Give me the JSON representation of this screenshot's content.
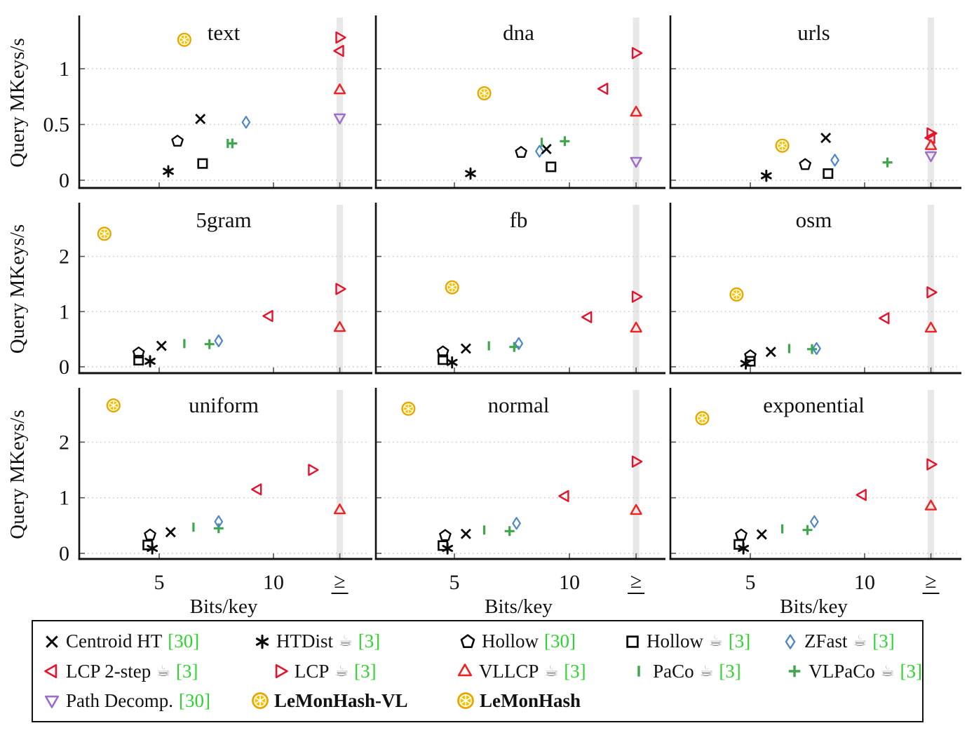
{
  "figure": {
    "ylabel": "Query MKeys/s",
    "xlabel": "Bits/key",
    "xtick_labels": [
      "5",
      "10",
      "≥"
    ],
    "gte_band_x": 12.9,
    "grid": "dotted horizontal at y ticks",
    "band_color": "#e2e2e2",
    "axis_color": "#111111",
    "cite_color": "#2fd32f"
  },
  "series": [
    {
      "id": "centroid_ht",
      "label": "Centroid HT",
      "cite": "[30]",
      "coffee": false,
      "marker": "x-marker",
      "color": "#0a0a0a"
    },
    {
      "id": "htdist",
      "label": "HTDist",
      "cite": "[3]",
      "coffee": true,
      "marker": "asterisk-marker",
      "color": "#0a0a0a"
    },
    {
      "id": "hollow30",
      "label": "Hollow",
      "cite": "[30]",
      "coffee": false,
      "marker": "pentagon-marker",
      "color": "#0a0a0a"
    },
    {
      "id": "hollow3",
      "label": "Hollow",
      "cite": "[3]",
      "coffee": true,
      "marker": "square-marker",
      "color": "#0a0a0a"
    },
    {
      "id": "zfast",
      "label": "ZFast",
      "cite": "[3]",
      "coffee": true,
      "marker": "diamond-marker",
      "color": "#4d87c7"
    },
    {
      "id": "lcp2step",
      "label": "LCP 2-step",
      "cite": "[3]",
      "coffee": true,
      "marker": "triangle-left-marker",
      "color": "#e4142e"
    },
    {
      "id": "lcp",
      "label": "LCP",
      "cite": "[3]",
      "coffee": true,
      "marker": "triangle-right-marker",
      "color": "#e4142e"
    },
    {
      "id": "vllcp",
      "label": "VLLCP",
      "cite": "[3]",
      "coffee": true,
      "marker": "triangle-up-marker",
      "color": "#ee2222"
    },
    {
      "id": "paco",
      "label": "PaCo",
      "cite": "[3]",
      "coffee": true,
      "marker": "bar-marker",
      "color": "#3ea64b"
    },
    {
      "id": "vlpaco",
      "label": "VLPaCo",
      "cite": "[3]",
      "coffee": true,
      "marker": "plus-marker",
      "color": "#3ea64b"
    },
    {
      "id": "pathdecomp",
      "label": "Path Decomp.",
      "cite": "[30]",
      "coffee": false,
      "marker": "triangle-down-marker",
      "color": "#9d6ec9"
    },
    {
      "id": "lemonhash_vl",
      "label": "LeMonHash-VL",
      "cite": null,
      "coffee": false,
      "marker": "lemon-icon",
      "color": "#f6c101",
      "bold": true
    },
    {
      "id": "lemonhash",
      "label": "LeMonHash",
      "cite": null,
      "coffee": false,
      "marker": "lemon-icon",
      "color": "#f6c101",
      "bold": true
    }
  ],
  "legend_rows": [
    [
      "centroid_ht",
      "htdist",
      "hollow30",
      "hollow3",
      "zfast"
    ],
    [
      "lcp2step",
      "lcp",
      "vllcp",
      "paco",
      "vlpaco"
    ],
    [
      "pathdecomp",
      "lemonhash_vl",
      "lemonhash"
    ]
  ],
  "chart_data": [
    {
      "type": "scatter",
      "title": "text",
      "xlim": [
        1.5,
        14.1
      ],
      "ylim": [
        0,
        1.46
      ],
      "yticks": [
        0,
        0.5,
        1
      ],
      "xticks": [
        5,
        10
      ],
      "gte_x": 12.9,
      "points": [
        {
          "series": "centroid_ht",
          "x": 6.8,
          "y": 0.55
        },
        {
          "series": "htdist",
          "x": 5.4,
          "y": 0.08
        },
        {
          "series": "hollow30",
          "x": 5.8,
          "y": 0.35
        },
        {
          "series": "hollow3",
          "x": 6.9,
          "y": 0.15
        },
        {
          "series": "zfast",
          "x": 8.8,
          "y": 0.52
        },
        {
          "series": "paco",
          "x": 8.0,
          "y": 0.33
        },
        {
          "series": "vlpaco",
          "x": 8.2,
          "y": 0.33
        },
        {
          "series": "lemonhash",
          "x": 6.1,
          "y": 1.26
        },
        {
          "series": "lcp",
          "x": "≥",
          "y": 1.28
        },
        {
          "series": "lcp2step",
          "x": "≥",
          "y": 1.16
        },
        {
          "series": "vllcp",
          "x": "≥",
          "y": 0.81
        },
        {
          "series": "pathdecomp",
          "x": "≥",
          "y": 0.56
        }
      ]
    },
    {
      "type": "scatter",
      "title": "dna",
      "xlim": [
        1.5,
        14.1
      ],
      "ylim": [
        0,
        1.46
      ],
      "yticks": [
        0,
        0.5,
        1
      ],
      "xticks": [
        5,
        10
      ],
      "gte_x": 12.9,
      "points": [
        {
          "series": "htdist",
          "x": 5.7,
          "y": 0.06
        },
        {
          "series": "hollow30",
          "x": 7.9,
          "y": 0.25
        },
        {
          "series": "zfast",
          "x": 8.7,
          "y": 0.26
        },
        {
          "series": "centroid_ht",
          "x": 9.0,
          "y": 0.28
        },
        {
          "series": "hollow3",
          "x": 9.2,
          "y": 0.12
        },
        {
          "series": "paco",
          "x": 8.8,
          "y": 0.34
        },
        {
          "series": "vlpaco",
          "x": 9.8,
          "y": 0.35
        },
        {
          "series": "lemonhash",
          "x": 6.3,
          "y": 0.78
        },
        {
          "series": "lcp2step",
          "x": 11.5,
          "y": 0.82
        },
        {
          "series": "lcp",
          "x": "≥",
          "y": 1.14
        },
        {
          "series": "vllcp",
          "x": "≥",
          "y": 0.61
        },
        {
          "series": "pathdecomp",
          "x": "≥",
          "y": 0.17
        }
      ]
    },
    {
      "type": "scatter",
      "title": "urls",
      "xlim": [
        1.5,
        14.1
      ],
      "ylim": [
        0,
        1.46
      ],
      "yticks": [
        0,
        0.5,
        1
      ],
      "xticks": [
        5,
        10
      ],
      "gte_x": 12.9,
      "points": [
        {
          "series": "htdist",
          "x": 5.7,
          "y": 0.04
        },
        {
          "series": "lemonhash",
          "x": 6.4,
          "y": 0.31
        },
        {
          "series": "hollow30",
          "x": 7.4,
          "y": 0.14
        },
        {
          "series": "hollow3",
          "x": 8.4,
          "y": 0.06
        },
        {
          "series": "centroid_ht",
          "x": 8.3,
          "y": 0.38
        },
        {
          "series": "zfast",
          "x": 8.7,
          "y": 0.18
        },
        {
          "series": "vlpaco",
          "x": 11.0,
          "y": 0.16
        },
        {
          "series": "lcp",
          "x": "≥",
          "y": 0.42
        },
        {
          "series": "lcp2step",
          "x": "≥",
          "y": 0.38
        },
        {
          "series": "vllcp",
          "x": "≥",
          "y": 0.31
        },
        {
          "series": "pathdecomp",
          "x": "≥",
          "y": 0.22
        }
      ]
    },
    {
      "type": "scatter",
      "title": "5gram",
      "xlim": [
        1.5,
        14.1
      ],
      "ylim": [
        0,
        2.95
      ],
      "yticks": [
        0,
        1,
        2
      ],
      "xticks": [
        5,
        10
      ],
      "gte_x": 12.9,
      "points": [
        {
          "series": "lemonhash",
          "x": 2.6,
          "y": 2.41
        },
        {
          "series": "hollow30",
          "x": 4.1,
          "y": 0.25
        },
        {
          "series": "hollow3",
          "x": 4.1,
          "y": 0.12
        },
        {
          "series": "htdist",
          "x": 4.6,
          "y": 0.1
        },
        {
          "series": "centroid_ht",
          "x": 5.1,
          "y": 0.38
        },
        {
          "series": "paco",
          "x": 6.1,
          "y": 0.42
        },
        {
          "series": "vlpaco",
          "x": 7.2,
          "y": 0.41
        },
        {
          "series": "zfast",
          "x": 7.6,
          "y": 0.47
        },
        {
          "series": "lcp2step",
          "x": 9.8,
          "y": 0.92
        },
        {
          "series": "lcp",
          "x": "≥",
          "y": 1.41
        },
        {
          "series": "vllcp",
          "x": "≥",
          "y": 0.71
        }
      ]
    },
    {
      "type": "scatter",
      "title": "fb",
      "xlim": [
        1.5,
        14.1
      ],
      "ylim": [
        0,
        2.95
      ],
      "yticks": [
        0,
        1,
        2
      ],
      "xticks": [
        5,
        10
      ],
      "gte_x": 12.9,
      "points": [
        {
          "series": "hollow30",
          "x": 4.5,
          "y": 0.27
        },
        {
          "series": "hollow3",
          "x": 4.5,
          "y": 0.13
        },
        {
          "series": "htdist",
          "x": 4.9,
          "y": 0.08
        },
        {
          "series": "lemonhash",
          "x": 4.9,
          "y": 1.44
        },
        {
          "series": "centroid_ht",
          "x": 5.5,
          "y": 0.33
        },
        {
          "series": "paco",
          "x": 6.5,
          "y": 0.38
        },
        {
          "series": "vlpaco",
          "x": 7.6,
          "y": 0.36
        },
        {
          "series": "zfast",
          "x": 7.8,
          "y": 0.42
        },
        {
          "series": "lcp2step",
          "x": 10.8,
          "y": 0.9
        },
        {
          "series": "lcp",
          "x": "≥",
          "y": 1.27
        },
        {
          "series": "vllcp",
          "x": "≥",
          "y": 0.7
        }
      ]
    },
    {
      "type": "scatter",
      "title": "osm",
      "xlim": [
        1.5,
        14.1
      ],
      "ylim": [
        0,
        2.95
      ],
      "yticks": [
        0,
        1,
        2
      ],
      "xticks": [
        5,
        10
      ],
      "gte_x": 12.9,
      "points": [
        {
          "series": "lemonhash",
          "x": 4.4,
          "y": 1.31
        },
        {
          "series": "htdist",
          "x": 4.8,
          "y": 0.06
        },
        {
          "series": "hollow30",
          "x": 5.0,
          "y": 0.2
        },
        {
          "series": "hollow3",
          "x": 5.0,
          "y": 0.1
        },
        {
          "series": "centroid_ht",
          "x": 5.9,
          "y": 0.27
        },
        {
          "series": "paco",
          "x": 6.7,
          "y": 0.33
        },
        {
          "series": "vlpaco",
          "x": 7.7,
          "y": 0.32
        },
        {
          "series": "zfast",
          "x": 7.9,
          "y": 0.33
        },
        {
          "series": "lcp2step",
          "x": 10.9,
          "y": 0.88
        },
        {
          "series": "lcp",
          "x": "≥",
          "y": 1.35
        },
        {
          "series": "vllcp",
          "x": "≥",
          "y": 0.7
        }
      ]
    },
    {
      "type": "scatter",
      "title": "uniform",
      "xlim": [
        1.5,
        14.1
      ],
      "ylim": [
        0,
        2.95
      ],
      "yticks": [
        0,
        1,
        2
      ],
      "xticks": [
        5,
        10
      ],
      "gte_x": 12.9,
      "points": [
        {
          "series": "lemonhash",
          "x": 3.0,
          "y": 2.66
        },
        {
          "series": "hollow30",
          "x": 4.6,
          "y": 0.33
        },
        {
          "series": "hollow3",
          "x": 4.5,
          "y": 0.15
        },
        {
          "series": "htdist",
          "x": 4.7,
          "y": 0.09
        },
        {
          "series": "centroid_ht",
          "x": 5.5,
          "y": 0.38
        },
        {
          "series": "paco",
          "x": 6.5,
          "y": 0.47
        },
        {
          "series": "vlpaco",
          "x": 7.6,
          "y": 0.45
        },
        {
          "series": "zfast",
          "x": 7.6,
          "y": 0.57
        },
        {
          "series": "lcp2step",
          "x": 9.3,
          "y": 1.15
        },
        {
          "series": "lcp",
          "x": 11.7,
          "y": 1.5
        },
        {
          "series": "vllcp",
          "x": "≥",
          "y": 0.78
        }
      ]
    },
    {
      "type": "scatter",
      "title": "normal",
      "xlim": [
        1.5,
        14.1
      ],
      "ylim": [
        0,
        2.95
      ],
      "yticks": [
        0,
        1,
        2
      ],
      "xticks": [
        5,
        10
      ],
      "gte_x": 12.9,
      "points": [
        {
          "series": "lemonhash",
          "x": 3.0,
          "y": 2.6
        },
        {
          "series": "hollow30",
          "x": 4.6,
          "y": 0.32
        },
        {
          "series": "hollow3",
          "x": 4.5,
          "y": 0.14
        },
        {
          "series": "htdist",
          "x": 4.7,
          "y": 0.09
        },
        {
          "series": "centroid_ht",
          "x": 5.5,
          "y": 0.35
        },
        {
          "series": "paco",
          "x": 6.3,
          "y": 0.42
        },
        {
          "series": "vlpaco",
          "x": 7.4,
          "y": 0.4
        },
        {
          "series": "zfast",
          "x": 7.7,
          "y": 0.54
        },
        {
          "series": "lcp2step",
          "x": 9.8,
          "y": 1.03
        },
        {
          "series": "lcp",
          "x": "≥",
          "y": 1.65
        },
        {
          "series": "vllcp",
          "x": "≥",
          "y": 0.77
        }
      ]
    },
    {
      "type": "scatter",
      "title": "exponential",
      "xlim": [
        1.5,
        14.1
      ],
      "ylim": [
        0,
        2.95
      ],
      "yticks": [
        0,
        1,
        2
      ],
      "xticks": [
        5,
        10
      ],
      "gte_x": 12.9,
      "points": [
        {
          "series": "lemonhash",
          "x": 2.9,
          "y": 2.43
        },
        {
          "series": "hollow30",
          "x": 4.6,
          "y": 0.33
        },
        {
          "series": "hollow3",
          "x": 4.5,
          "y": 0.16
        },
        {
          "series": "htdist",
          "x": 4.7,
          "y": 0.09
        },
        {
          "series": "centroid_ht",
          "x": 5.5,
          "y": 0.34
        },
        {
          "series": "paco",
          "x": 6.4,
          "y": 0.44
        },
        {
          "series": "vlpaco",
          "x": 7.5,
          "y": 0.42
        },
        {
          "series": "zfast",
          "x": 7.8,
          "y": 0.57
        },
        {
          "series": "lcp2step",
          "x": 9.9,
          "y": 1.05
        },
        {
          "series": "lcp",
          "x": "≥",
          "y": 1.6
        },
        {
          "series": "vllcp",
          "x": "≥",
          "y": 0.85
        }
      ]
    }
  ]
}
